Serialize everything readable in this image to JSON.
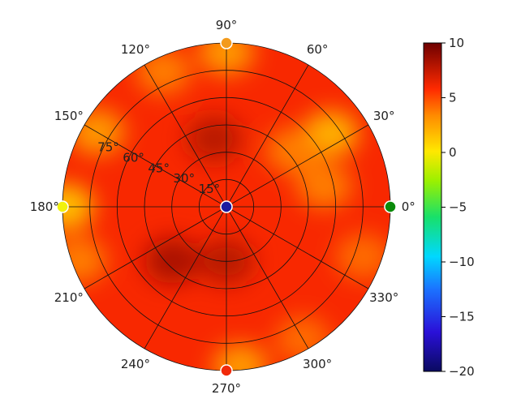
{
  "chart_data": {
    "type": "heatmap",
    "projection": "polar",
    "angle_tick_labels": [
      "0°",
      "30°",
      "60°",
      "90°",
      "120°",
      "150°",
      "180°",
      "210°",
      "240°",
      "270°",
      "300°",
      "330°"
    ],
    "angle_ticks_deg": [
      0,
      30,
      60,
      90,
      120,
      150,
      180,
      210,
      240,
      270,
      300,
      330
    ],
    "radial_tick_labels": [
      "15°",
      "30°",
      "45°",
      "60°",
      "75°"
    ],
    "radial_ticks": [
      15,
      30,
      45,
      60,
      75
    ],
    "radial_range": [
      0,
      90
    ],
    "colorbar": {
      "colormap": "jet-like (navy → blue → cyan → green → yellow → orange → red → dark red)",
      "range": [
        -20,
        10
      ],
      "tick_labels": [
        "10",
        "5",
        "0",
        "−5",
        "−10",
        "−15",
        "−20"
      ],
      "tick_values": [
        10,
        5,
        0,
        -5,
        -10,
        -15,
        -20
      ]
    },
    "field": {
      "base_value": 6.0,
      "features": [
        {
          "az_deg": 90,
          "el_deg": 85,
          "value": 2.5,
          "note": "edge near 90°"
        },
        {
          "az_deg": 115,
          "el_deg": 82,
          "value": 3.5,
          "note": "warm band 100°–130°"
        },
        {
          "az_deg": 150,
          "el_deg": 82,
          "value": 2.5,
          "note": "edge near 150°"
        },
        {
          "az_deg": 35,
          "el_deg": 70,
          "value": 1.5,
          "note": "yellow-orange near 30°"
        },
        {
          "az_deg": 40,
          "el_deg": 48,
          "value": 3.5,
          "note": "orange patch inner 30°–40°"
        },
        {
          "az_deg": 12,
          "el_deg": 55,
          "value": 3.5,
          "note": "orange patch near 10°"
        },
        {
          "az_deg": 180,
          "el_deg": 88,
          "value": 1.0,
          "note": "yellow edge at 180°"
        },
        {
          "az_deg": 200,
          "el_deg": 86,
          "value": 3.5,
          "note": "edge 190°–205°"
        },
        {
          "az_deg": 225,
          "el_deg": 42,
          "value": 8.5,
          "note": "dark red region 210°–235°"
        },
        {
          "az_deg": 100,
          "el_deg": 38,
          "value": 8.0,
          "note": "dark red region 95°–110°"
        },
        {
          "az_deg": 270,
          "el_deg": 30,
          "value": 8.0,
          "note": "dark red region near 270°"
        },
        {
          "az_deg": 300,
          "el_deg": 84,
          "value": 4.0,
          "note": "orange edge near 300°"
        },
        {
          "az_deg": 340,
          "el_deg": 80,
          "value": 4.0,
          "note": "orange edge near 340°"
        },
        {
          "az_deg": 275,
          "el_deg": 88,
          "value": 2.5,
          "note": "edge near 270°"
        }
      ]
    },
    "markers": [
      {
        "az_deg": 0,
        "el_deg": 90,
        "value": -2,
        "color": "#0a8a0a"
      },
      {
        "az_deg": 90,
        "el_deg": 90,
        "value": 3,
        "color": "#f39a1c"
      },
      {
        "az_deg": 180,
        "el_deg": 90,
        "value": 0.5,
        "color": "#f2f20c"
      },
      {
        "az_deg": 270,
        "el_deg": 90,
        "value": 6,
        "color": "#f12a0a"
      },
      {
        "az_deg": 0,
        "el_deg": 0,
        "value": -19,
        "color": "#1a1aa0"
      }
    ]
  }
}
